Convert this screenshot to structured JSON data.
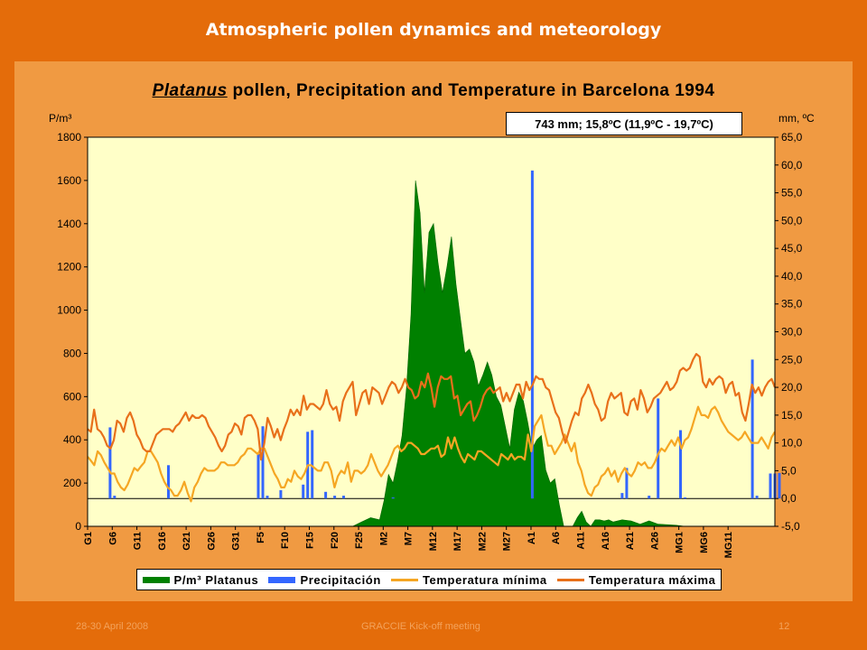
{
  "slide": {
    "title": "Atmospheric pollen dynamics and meteorology",
    "footer_left": "28-30 April 2008",
    "footer_center": "GRACCIE Kick-off meeting",
    "footer_right": "12"
  },
  "chart_data": {
    "type": "bar+area+line",
    "title_genus": "Platanus",
    "title_rest": " pollen, Precipitation and Temperature in Barcelona 1994",
    "summary": "743 mm; 15,8ºC (11,9ºC - 19,7ºC)",
    "left_axis_unit": "P/m³",
    "right_axis_unit": "mm, ºC",
    "left_ylim": [
      0,
      1800
    ],
    "left_ticks": [
      "0",
      "200",
      "400",
      "600",
      "800",
      "1000",
      "1200",
      "1400",
      "1600",
      "1800"
    ],
    "right_ylim": [
      -5,
      65
    ],
    "right_ticks": [
      "-5,0",
      "0,0",
      "5,0",
      "10,0",
      "15,0",
      "20,0",
      "25,0",
      "30,0",
      "35,0",
      "40,0",
      "45,0",
      "50,0",
      "55,0",
      "60,0",
      "65,0"
    ],
    "x_range": [
      1,
      154
    ],
    "x_tick_labels": [
      "G1",
      "G6",
      "G11",
      "G16",
      "G21",
      "G26",
      "G31",
      "F5",
      "F10",
      "F15",
      "F20",
      "F25",
      "M2",
      "M7",
      "M12",
      "M17",
      "M22",
      "M27",
      "A1",
      "A6",
      "A11",
      "A16",
      "A21",
      "A26",
      "MG1",
      "MG6",
      "MG11"
    ],
    "grid": false,
    "legend_position": "bottom",
    "series": [
      {
        "name": "P/m³ Platanus",
        "kind": "area",
        "axis": "left",
        "color": "#008000",
        "points": [
          [
            60,
            0
          ],
          [
            62,
            20
          ],
          [
            64,
            40
          ],
          [
            66,
            30
          ],
          [
            67,
            120
          ],
          [
            68,
            240
          ],
          [
            69,
            200
          ],
          [
            70,
            300
          ],
          [
            71,
            420
          ],
          [
            72,
            640
          ],
          [
            73,
            980
          ],
          [
            74,
            1600
          ],
          [
            75,
            1450
          ],
          [
            76,
            1080
          ],
          [
            77,
            1360
          ],
          [
            78,
            1400
          ],
          [
            79,
            1220
          ],
          [
            80,
            1080
          ],
          [
            81,
            1200
          ],
          [
            82,
            1340
          ],
          [
            83,
            1120
          ],
          [
            84,
            960
          ],
          [
            85,
            800
          ],
          [
            86,
            820
          ],
          [
            87,
            760
          ],
          [
            88,
            650
          ],
          [
            89,
            700
          ],
          [
            90,
            760
          ],
          [
            91,
            700
          ],
          [
            92,
            600
          ],
          [
            93,
            560
          ],
          [
            94,
            460
          ],
          [
            95,
            360
          ],
          [
            96,
            540
          ],
          [
            97,
            620
          ],
          [
            98,
            580
          ],
          [
            99,
            480
          ],
          [
            100,
            360
          ],
          [
            101,
            400
          ],
          [
            102,
            420
          ],
          [
            103,
            260
          ],
          [
            104,
            200
          ],
          [
            105,
            220
          ],
          [
            106,
            100
          ],
          [
            107,
            0
          ],
          [
            109,
            0
          ],
          [
            110,
            40
          ],
          [
            111,
            70
          ],
          [
            112,
            20
          ],
          [
            113,
            0
          ],
          [
            114,
            30
          ],
          [
            115,
            30
          ],
          [
            116,
            25
          ],
          [
            117,
            30
          ],
          [
            118,
            20
          ],
          [
            120,
            30
          ],
          [
            122,
            25
          ],
          [
            124,
            10
          ],
          [
            126,
            25
          ],
          [
            128,
            10
          ],
          [
            132,
            5
          ],
          [
            134,
            0
          ]
        ]
      },
      {
        "name": "Precipitación",
        "kind": "bar",
        "axis": "right",
        "color": "#3366ff",
        "bars": [
          [
            6,
            12.8
          ],
          [
            7,
            0.5
          ],
          [
            19,
            6.0
          ],
          [
            39,
            8.0
          ],
          [
            40,
            13.0
          ],
          [
            41,
            0.5
          ],
          [
            44,
            1.5
          ],
          [
            49,
            2.5
          ],
          [
            50,
            12.0
          ],
          [
            51,
            12.3
          ],
          [
            54,
            1.2
          ],
          [
            56,
            0.5
          ],
          [
            58,
            0.5
          ],
          [
            69,
            0.2
          ],
          [
            100,
            59.0
          ],
          [
            120,
            1.0
          ],
          [
            121,
            5.5
          ],
          [
            126,
            0.5
          ],
          [
            128,
            18.0
          ],
          [
            133,
            12.3
          ],
          [
            134,
            0.2
          ],
          [
            149,
            25.0
          ],
          [
            150,
            0.5
          ],
          [
            153,
            4.5
          ],
          [
            154,
            4.5
          ],
          [
            155,
            4.6
          ]
        ]
      },
      {
        "name": "Temperatura mínima",
        "kind": "line",
        "axis": "right",
        "color": "#f5a623",
        "values": [
          7.5,
          6.8,
          6.0,
          8.5,
          7.8,
          6.5,
          5.5,
          4.5,
          4.5,
          3.0,
          2.0,
          1.5,
          2.5,
          4.0,
          5.5,
          5.0,
          5.8,
          6.5,
          8.5,
          8.5,
          7.5,
          6.5,
          4.5,
          3.0,
          2.0,
          1.5,
          0.5,
          0.5,
          1.5,
          3.0,
          1.0,
          -0.5,
          2.0,
          3.0,
          4.5,
          5.5,
          5.0,
          5.0,
          5.0,
          5.5,
          6.5,
          6.5,
          6.0,
          6.0,
          6.0,
          6.5,
          7.5,
          8.0,
          9.0,
          9.0,
          8.5,
          8.0,
          9.0,
          9.0,
          7.5,
          6.0,
          4.5,
          3.5,
          2.0,
          2.0,
          3.5,
          3.0,
          5.0,
          4.0,
          3.5,
          4.5,
          6.0,
          6.0,
          5.5,
          5.0,
          5.0,
          6.5,
          6.5,
          5.0,
          2.0,
          4.0,
          5.0,
          4.5,
          6.5,
          3.0,
          5.0,
          5.0,
          4.5,
          5.0,
          6.0,
          8.0,
          6.5,
          5.0,
          4.0,
          5.0,
          6.0,
          7.5,
          9.0,
          9.5,
          8.5,
          9.0,
          10.0,
          10.0,
          9.5,
          9.0,
          8.0,
          8.0,
          8.5,
          9.0,
          9.0,
          9.5,
          7.5,
          8.0,
          11.0,
          9.0,
          11.0,
          9.0,
          7.5,
          6.5,
          8.0,
          7.5,
          7.0,
          8.5,
          8.5,
          8.0,
          7.5,
          7.0,
          6.5,
          6.0,
          8.0,
          7.5,
          7.0,
          8.0,
          7.0,
          7.5,
          7.5,
          7.0,
          11.5,
          8.5,
          13.0,
          14.0,
          15.0,
          12.0,
          9.5,
          9.5,
          8.0,
          9.0,
          10.0,
          11.5,
          10.0,
          8.5,
          10.0,
          6.5,
          5.0,
          2.5,
          1.0,
          0.5,
          2.0,
          2.5,
          4.0,
          4.5,
          5.5,
          4.0,
          5.0,
          3.0,
          4.5,
          5.5,
          4.5,
          4.0,
          5.0,
          6.5,
          6.0,
          6.5,
          5.5,
          5.5,
          6.5,
          8.0,
          9.0,
          8.5,
          9.5,
          10.5,
          9.5,
          11.0,
          9.0,
          10.5,
          11.0,
          12.5,
          14.5,
          16.5,
          15.0,
          15.0,
          14.5,
          16.0,
          16.5,
          15.5,
          14.0,
          13.0,
          12.0,
          11.5,
          11.0,
          10.5,
          11.0,
          12.0,
          11.0,
          10.0,
          10.0,
          10.0,
          11.0,
          10.0,
          9.0,
          11.0,
          12.0
        ]
      },
      {
        "name": "Temperatura máxima",
        "kind": "line",
        "axis": "right",
        "color": "#e8701a",
        "values": [
          12.5,
          12.0,
          16.0,
          12.5,
          12.0,
          11.0,
          9.5,
          9.0,
          10.5,
          14.0,
          13.5,
          12.0,
          14.5,
          15.5,
          14.0,
          11.5,
          10.5,
          9.0,
          8.5,
          8.5,
          10.0,
          11.5,
          12.0,
          12.5,
          12.5,
          12.5,
          12.0,
          13.0,
          13.5,
          14.5,
          15.5,
          14.0,
          15.0,
          14.5,
          14.5,
          15.0,
          14.5,
          13.0,
          12.0,
          11.0,
          9.5,
          8.5,
          9.5,
          11.5,
          12.0,
          13.5,
          13.0,
          11.5,
          14.5,
          15.0,
          15.0,
          14.0,
          12.5,
          7.0,
          10.0,
          14.5,
          13.0,
          11.0,
          12.5,
          10.5,
          12.5,
          14.0,
          16.0,
          15.0,
          16.0,
          15.0,
          18.5,
          16.0,
          17.0,
          17.0,
          16.5,
          16.0,
          17.0,
          19.5,
          17.0,
          16.0,
          16.5,
          14.0,
          17.5,
          19.0,
          20.0,
          21.0,
          15.0,
          17.0,
          19.0,
          19.5,
          17.0,
          20.0,
          19.5,
          19.0,
          17.0,
          18.5,
          20.0,
          21.0,
          20.5,
          19.0,
          20.0,
          21.5,
          20.0,
          19.5,
          18.0,
          18.5,
          21.0,
          20.0,
          22.5,
          20.0,
          16.5,
          20.0,
          22.0,
          21.5,
          21.5,
          22.0,
          18.0,
          18.5,
          15.0,
          16.0,
          17.0,
          17.5,
          14.0,
          15.0,
          16.5,
          18.5,
          19.5,
          20.0,
          19.0,
          19.5,
          20.0,
          17.5,
          19.0,
          17.5,
          19.0,
          20.5,
          20.5,
          18.0,
          21.0,
          19.5,
          20.5,
          22.0,
          21.5,
          21.5,
          20.0,
          19.5,
          17.5,
          15.5,
          14.5,
          12.0,
          10.0,
          12.0,
          14.0,
          15.5,
          15.0,
          18.0,
          19.0,
          20.5,
          19.0,
          17.0,
          16.0,
          14.0,
          14.5,
          17.5,
          19.0,
          18.0,
          18.5,
          19.0,
          15.5,
          15.0,
          17.5,
          18.0,
          16.0,
          19.5,
          18.0,
          15.5,
          16.5,
          18.0,
          18.5,
          19.0,
          20.0,
          21.0,
          19.5,
          20.0,
          21.0,
          23.0,
          23.5,
          23.0,
          23.5,
          25.0,
          26.0,
          25.5,
          21.0,
          20.0,
          21.5,
          20.5,
          21.5,
          22.0,
          21.5,
          19.0,
          20.5,
          21.0,
          18.5,
          19.0,
          15.5,
          14.0,
          17.0,
          20.5,
          19.0,
          20.0,
          18.5,
          20.0,
          21.0,
          21.5,
          20.0
        ]
      }
    ]
  }
}
